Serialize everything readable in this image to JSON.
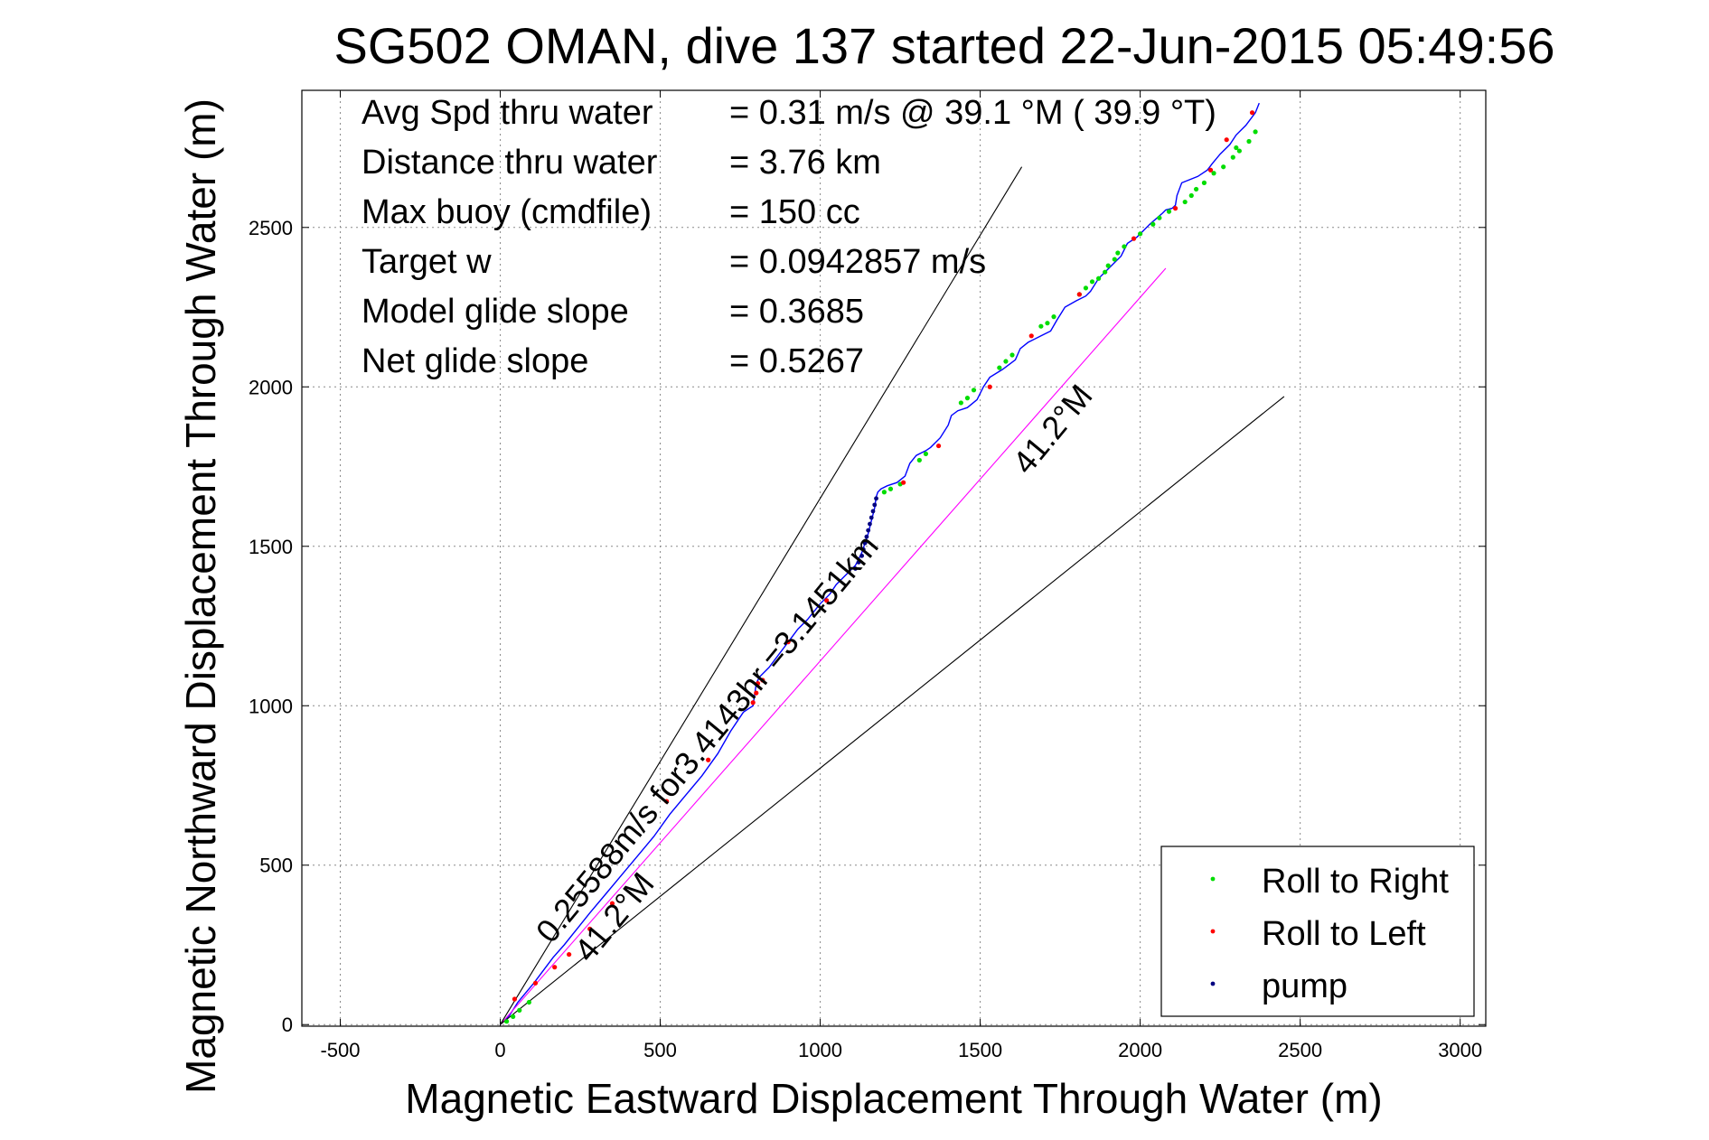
{
  "chart_data": {
    "type": "line",
    "title": "SG502 OMAN, dive 137 started 22-Jun-2015 05:49:56",
    "xlabel": "Magnetic Eastward Displacement Through Water (m)",
    "ylabel": "Magnetic Northward Displacement Through Water (m)",
    "xlim": [
      -620,
      3080
    ],
    "ylim": [
      -5,
      2930
    ],
    "xticks": [
      -500,
      0,
      500,
      1000,
      1500,
      2000,
      2500,
      3000
    ],
    "yticks": [
      0,
      500,
      1000,
      1500,
      2000,
      2500
    ],
    "grid": true,
    "info_lines": [
      {
        "label": "Avg Spd thru water",
        "value": "=  0.31 m/s @  39.1 °M ( 39.9 °T)"
      },
      {
        "label": "Distance thru water",
        "value": "=  3.76 km"
      },
      {
        "label": "Max buoy (cmdfile)",
        "value": "= 150 cc"
      },
      {
        "label": "Target w",
        "value": "= 0.0942857 m/s"
      },
      {
        "label": "Model glide slope",
        "value": "= 0.3685"
      },
      {
        "label": "Net glide slope",
        "value": "= 0.5267"
      }
    ],
    "annotations": [
      {
        "text": "0.25588m/s for3.4143hr =3.1451km",
        "x": 160,
        "y": 250,
        "angle_deg": 50.5
      },
      {
        "text": "41.2°M",
        "x": 280,
        "y": 190,
        "angle_deg": 50.5
      },
      {
        "text": "41.2°M",
        "x": 1650,
        "y": 1720,
        "angle_deg": 50.5
      }
    ],
    "series": [
      {
        "name": "glider track",
        "color": "#0000ff",
        "x": [
          0,
          30,
          55,
          80,
          105,
          135,
          165,
          200,
          240,
          280,
          330,
          380,
          430,
          480,
          530,
          580,
          630,
          680,
          720,
          760,
          790,
          800,
          810,
          840,
          870,
          900,
          930,
          960,
          1000,
          1030,
          1050,
          1080,
          1110,
          1130,
          1140,
          1150,
          1160,
          1170,
          1175,
          1180,
          1190,
          1210,
          1240,
          1265,
          1280,
          1300,
          1320,
          1330,
          1345,
          1375,
          1400,
          1410,
          1430,
          1460,
          1490,
          1510,
          1530,
          1570,
          1610,
          1625,
          1650,
          1690,
          1720,
          1740,
          1765,
          1800,
          1830,
          1845,
          1870,
          1910,
          1940,
          1960,
          1990,
          2030,
          2070,
          2080,
          2100,
          2110,
          2115,
          2130,
          2180,
          2210,
          2225,
          2250,
          2280,
          2300,
          2330,
          2360,
          2372
        ],
        "y": [
          0,
          30,
          70,
          100,
          130,
          170,
          210,
          250,
          300,
          350,
          410,
          470,
          530,
          590,
          660,
          720,
          780,
          850,
          920,
          980,
          1000,
          1070,
          1090,
          1120,
          1160,
          1200,
          1240,
          1270,
          1320,
          1350,
          1380,
          1410,
          1440,
          1480,
          1510,
          1540,
          1580,
          1620,
          1655,
          1670,
          1680,
          1690,
          1700,
          1720,
          1760,
          1785,
          1795,
          1800,
          1810,
          1840,
          1880,
          1910,
          1925,
          1935,
          1960,
          2000,
          2030,
          2055,
          2085,
          2120,
          2140,
          2160,
          2175,
          2210,
          2250,
          2270,
          2285,
          2300,
          2340,
          2380,
          2410,
          2450,
          2470,
          2510,
          2545,
          2555,
          2560,
          2570,
          2600,
          2640,
          2660,
          2680,
          2700,
          2730,
          2760,
          2790,
          2820,
          2860,
          2890
        ]
      },
      {
        "name": "net current line",
        "color": "#ff00ff",
        "x": [
          0,
          2080
        ],
        "y": [
          0,
          2372
        ]
      },
      {
        "name": "glide cone left",
        "color": "#000000",
        "x": [
          0,
          1630
        ],
        "y": [
          0,
          2690
        ]
      },
      {
        "name": "glide cone right",
        "color": "#000000",
        "x": [
          0,
          2450
        ],
        "y": [
          0,
          1970
        ]
      }
    ],
    "markers": {
      "roll_right": {
        "color": "#00dd00",
        "x": [
          20,
          40,
          60,
          90,
          1810,
          1830,
          1850,
          1870,
          1890,
          1900,
          1920,
          1930,
          1950,
          2000,
          2040,
          2060,
          2090,
          2140,
          2160,
          2175,
          2200,
          2260,
          2290,
          2310,
          2340,
          2360,
          1560,
          1580,
          1600,
          1690,
          1710,
          1730,
          1440,
          1460,
          1480,
          1310,
          1330,
          1200,
          1220,
          1250,
          2230,
          2300
        ],
        "y": [
          10,
          25,
          45,
          70,
          2290,
          2310,
          2330,
          2340,
          2360,
          2380,
          2400,
          2420,
          2440,
          2480,
          2510,
          2530,
          2550,
          2580,
          2600,
          2620,
          2640,
          2690,
          2720,
          2740,
          2770,
          2800,
          2060,
          2080,
          2100,
          2190,
          2200,
          2220,
          1950,
          1965,
          1990,
          1770,
          1790,
          1670,
          1680,
          1695,
          2670,
          2750
        ]
      },
      "roll_left": {
        "color": "#ff0000",
        "x": [
          45,
          110,
          170,
          215,
          280,
          350,
          520,
          650,
          790,
          800,
          805,
          820,
          900,
          1020,
          1260,
          1370,
          1530,
          1660,
          1810,
          1980,
          2110,
          2220,
          2270,
          2350
        ],
        "y": [
          80,
          130,
          180,
          220,
          300,
          380,
          700,
          830,
          1010,
          1040,
          1070,
          1080,
          1200,
          1330,
          1700,
          1815,
          2000,
          2160,
          2290,
          2465,
          2560,
          2680,
          2775,
          2860
        ]
      },
      "pump": {
        "color": "#000080",
        "x": [
          1110,
          1120,
          1130,
          1135,
          1140,
          1145,
          1150,
          1155,
          1160,
          1165,
          1170,
          1175
        ],
        "y": [
          1430,
          1450,
          1470,
          1490,
          1510,
          1530,
          1550,
          1570,
          1590,
          1610,
          1630,
          1650
        ]
      }
    },
    "legend": {
      "placement": "bottom-right",
      "entries": [
        {
          "label": "Roll to Right",
          "color": "#00dd00"
        },
        {
          "label": "Roll to Left",
          "color": "#ff0000"
        },
        {
          "label": "pump",
          "color": "#000080"
        }
      ]
    }
  }
}
